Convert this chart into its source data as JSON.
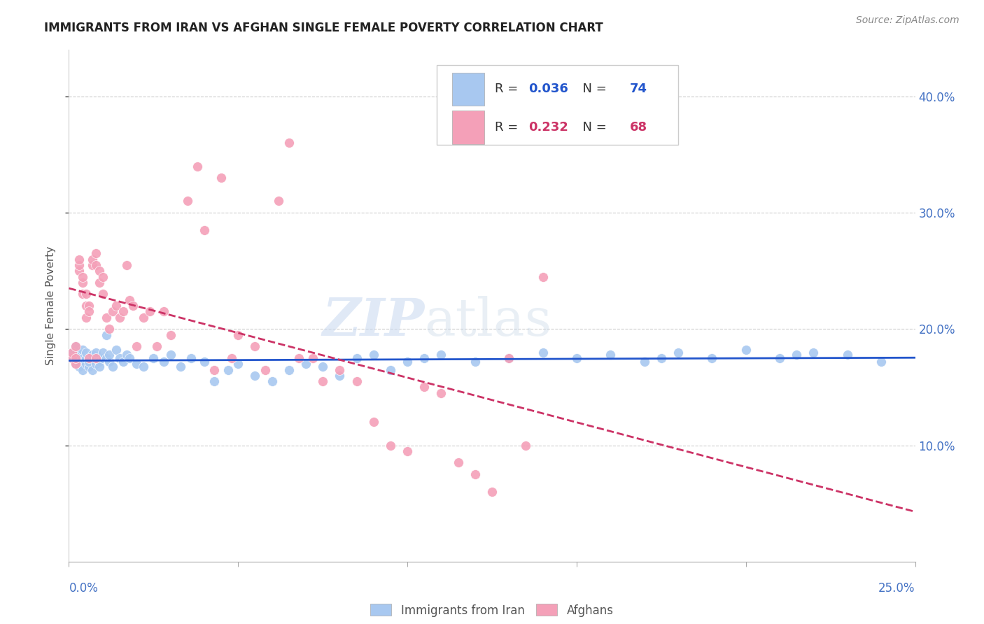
{
  "title": "IMMIGRANTS FROM IRAN VS AFGHAN SINGLE FEMALE POVERTY CORRELATION CHART",
  "source": "Source: ZipAtlas.com",
  "ylabel": "Single Female Poverty",
  "xlim": [
    0.0,
    0.25
  ],
  "ylim": [
    0.0,
    0.44
  ],
  "iran_color": "#a8c8f0",
  "afghan_color": "#f4a0b8",
  "iran_R": 0.036,
  "iran_N": 74,
  "afghan_R": 0.232,
  "afghan_N": 68,
  "iran_line_color": "#2255cc",
  "afghan_line_color": "#cc3366",
  "watermark_zip": "ZIP",
  "watermark_atlas": "atlas",
  "iran_x": [
    0.001,
    0.001,
    0.002,
    0.002,
    0.002,
    0.003,
    0.003,
    0.003,
    0.004,
    0.004,
    0.004,
    0.005,
    0.005,
    0.005,
    0.006,
    0.006,
    0.006,
    0.007,
    0.007,
    0.008,
    0.008,
    0.008,
    0.009,
    0.009,
    0.01,
    0.01,
    0.011,
    0.011,
    0.012,
    0.012,
    0.013,
    0.014,
    0.015,
    0.016,
    0.017,
    0.018,
    0.02,
    0.022,
    0.025,
    0.028,
    0.03,
    0.033,
    0.036,
    0.04,
    0.043,
    0.047,
    0.05,
    0.055,
    0.06,
    0.065,
    0.07,
    0.075,
    0.08,
    0.085,
    0.09,
    0.095,
    0.1,
    0.105,
    0.11,
    0.12,
    0.13,
    0.14,
    0.15,
    0.16,
    0.17,
    0.175,
    0.18,
    0.19,
    0.2,
    0.21,
    0.215,
    0.22,
    0.23,
    0.24
  ],
  "iran_y": [
    0.175,
    0.18,
    0.17,
    0.175,
    0.185,
    0.172,
    0.168,
    0.178,
    0.165,
    0.175,
    0.182,
    0.17,
    0.175,
    0.18,
    0.168,
    0.175,
    0.172,
    0.178,
    0.165,
    0.175,
    0.17,
    0.18,
    0.172,
    0.168,
    0.175,
    0.18,
    0.195,
    0.175,
    0.172,
    0.178,
    0.168,
    0.182,
    0.175,
    0.172,
    0.178,
    0.175,
    0.17,
    0.168,
    0.175,
    0.172,
    0.178,
    0.168,
    0.175,
    0.172,
    0.155,
    0.165,
    0.17,
    0.16,
    0.155,
    0.165,
    0.17,
    0.168,
    0.16,
    0.175,
    0.178,
    0.165,
    0.172,
    0.175,
    0.178,
    0.172,
    0.175,
    0.18,
    0.175,
    0.178,
    0.172,
    0.175,
    0.18,
    0.175,
    0.182,
    0.175,
    0.178,
    0.18,
    0.178,
    0.172
  ],
  "afghan_x": [
    0.001,
    0.001,
    0.002,
    0.002,
    0.002,
    0.003,
    0.003,
    0.003,
    0.004,
    0.004,
    0.004,
    0.005,
    0.005,
    0.005,
    0.006,
    0.006,
    0.006,
    0.007,
    0.007,
    0.008,
    0.008,
    0.008,
    0.009,
    0.009,
    0.01,
    0.01,
    0.011,
    0.012,
    0.013,
    0.014,
    0.015,
    0.016,
    0.017,
    0.018,
    0.019,
    0.02,
    0.022,
    0.024,
    0.026,
    0.028,
    0.03,
    0.035,
    0.038,
    0.04,
    0.043,
    0.045,
    0.048,
    0.05,
    0.055,
    0.058,
    0.062,
    0.065,
    0.068,
    0.072,
    0.075,
    0.08,
    0.085,
    0.09,
    0.095,
    0.1,
    0.105,
    0.11,
    0.115,
    0.12,
    0.125,
    0.13,
    0.135,
    0.14
  ],
  "afghan_y": [
    0.175,
    0.18,
    0.17,
    0.175,
    0.185,
    0.25,
    0.255,
    0.26,
    0.23,
    0.24,
    0.245,
    0.21,
    0.22,
    0.23,
    0.175,
    0.22,
    0.215,
    0.255,
    0.26,
    0.175,
    0.265,
    0.255,
    0.24,
    0.25,
    0.23,
    0.245,
    0.21,
    0.2,
    0.215,
    0.22,
    0.21,
    0.215,
    0.255,
    0.225,
    0.22,
    0.185,
    0.21,
    0.215,
    0.185,
    0.215,
    0.195,
    0.31,
    0.34,
    0.285,
    0.165,
    0.33,
    0.175,
    0.195,
    0.185,
    0.165,
    0.31,
    0.36,
    0.175,
    0.175,
    0.155,
    0.165,
    0.155,
    0.12,
    0.1,
    0.095,
    0.15,
    0.145,
    0.085,
    0.075,
    0.06,
    0.175,
    0.1,
    0.245
  ]
}
